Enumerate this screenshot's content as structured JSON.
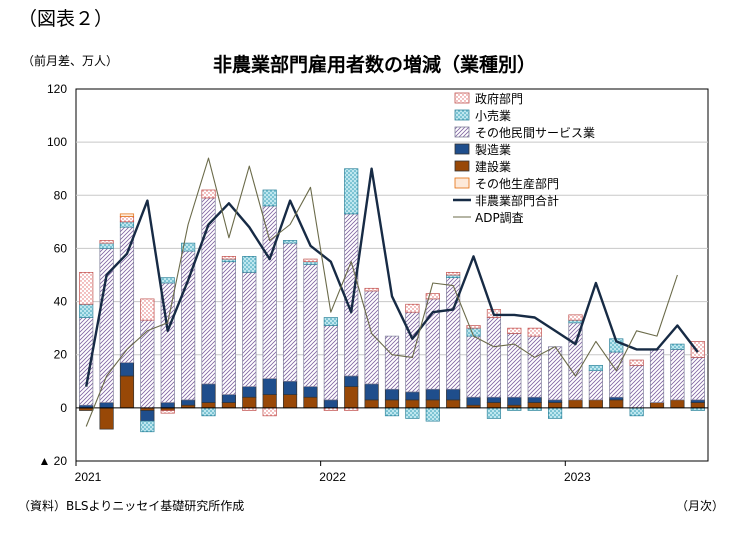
{
  "figure_label": "（図表２）",
  "y_unit": "（前月差、万人）",
  "source": "（資料）BLSよりニッセイ基礎研究所作成",
  "x_unit": "（月次）",
  "colors": {
    "government": "#c0504d",
    "retail": "#4bacc6",
    "other_services": "#8064a2",
    "manufacturing": "#1f4e8c",
    "construction": "#984807",
    "other_goods": "#e46c0a",
    "total": "#172b45",
    "adp": "#6b6b4a"
  },
  "chart_data": {
    "type": "bar",
    "title": "非農業部門雇用者数の増減（業種別）",
    "ylim": [
      -20,
      120
    ],
    "yticks": [
      -20,
      0,
      20,
      40,
      60,
      80,
      100,
      120
    ],
    "ytick_labels": [
      "▲ 20",
      "0",
      "20",
      "40",
      "60",
      "80",
      "100",
      "120"
    ],
    "x_labels": [
      {
        "label": "2021",
        "index": 0
      },
      {
        "label": "2022",
        "index": 12
      },
      {
        "label": "2023",
        "index": 24
      }
    ],
    "categories": [
      "2021-01",
      "2021-02",
      "2021-03",
      "2021-04",
      "2021-05",
      "2021-06",
      "2021-07",
      "2021-08",
      "2021-09",
      "2021-10",
      "2021-11",
      "2021-12",
      "2022-01",
      "2022-02",
      "2022-03",
      "2022-04",
      "2022-05",
      "2022-06",
      "2022-07",
      "2022-08",
      "2022-09",
      "2022-10",
      "2022-11",
      "2022-12",
      "2023-01",
      "2023-02",
      "2023-03",
      "2023-04",
      "2023-05",
      "2023-06",
      "2023-07"
    ],
    "legend_position": "top-right",
    "series": [
      {
        "name": "政府部門",
        "kind": "stack",
        "color_key": "government",
        "pattern": "dots-red",
        "values": [
          12,
          1,
          2,
          8,
          -1,
          0,
          3,
          1,
          -1,
          -3,
          0,
          1,
          -1,
          -1,
          1,
          0,
          3,
          2,
          1,
          1,
          3,
          2,
          3,
          0,
          2,
          0,
          0,
          2,
          0,
          0,
          6
        ]
      },
      {
        "name": "小売業",
        "kind": "stack",
        "color_key": "retail",
        "pattern": "dots-cyan",
        "values": [
          5,
          2,
          2,
          -4,
          2,
          3,
          -3,
          1,
          6,
          6,
          1,
          1,
          3,
          17,
          0,
          -3,
          -4,
          -5,
          1,
          3,
          -4,
          -1,
          -1,
          -4,
          1,
          2,
          5,
          -3,
          0,
          2,
          -1
        ]
      },
      {
        "name": "その他民間サービス業",
        "kind": "stack",
        "color_key": "other_services",
        "pattern": "hatch",
        "values": [
          33,
          58,
          51,
          33,
          45,
          56,
          70,
          50,
          43,
          65,
          52,
          46,
          28,
          61,
          35,
          20,
          30,
          34,
          42,
          23,
          30,
          24,
          23,
          20,
          29,
          11,
          17,
          16,
          20,
          19,
          16
        ]
      },
      {
        "name": "製造業",
        "kind": "stack",
        "color_key": "manufacturing",
        "pattern": "solid",
        "values": [
          1,
          2,
          5,
          -4,
          2,
          2,
          7,
          3,
          4,
          6,
          5,
          4,
          3,
          4,
          6,
          4,
          3,
          4,
          4,
          3,
          2,
          3,
          2,
          1,
          0,
          0,
          1,
          0,
          0,
          0,
          1
        ]
      },
      {
        "name": "建設業",
        "kind": "stack",
        "color_key": "construction",
        "pattern": "solid",
        "values": [
          -1,
          -8,
          12,
          -1,
          -1,
          1,
          2,
          2,
          4,
          5,
          5,
          4,
          0,
          8,
          3,
          3,
          3,
          3,
          3,
          1,
          2,
          1,
          2,
          2,
          3,
          3,
          3,
          0,
          2,
          3,
          2
        ]
      },
      {
        "name": "その他生産部門",
        "kind": "stack",
        "color_key": "other_goods",
        "pattern": "light",
        "values": [
          0,
          0,
          1,
          0,
          0,
          0,
          0,
          0,
          0,
          0,
          0,
          0,
          0,
          0,
          0,
          0,
          0,
          0,
          0,
          0,
          0,
          0,
          0,
          0,
          0,
          0,
          0,
          0,
          0,
          0,
          0
        ]
      },
      {
        "name": "非農業部門合計",
        "kind": "line",
        "color_key": "total",
        "width": 2.4,
        "values": [
          8,
          50,
          58,
          78,
          29,
          48,
          69,
          77,
          68,
          56,
          78,
          61,
          55,
          36,
          90,
          42,
          26,
          36,
          37,
          57,
          35,
          35,
          34,
          29,
          24,
          47,
          25,
          22,
          22,
          31,
          21
        ]
      },
      {
        "name": "ADP調査",
        "kind": "line",
        "color_key": "adp",
        "width": 1.1,
        "values": [
          -7,
          12,
          22,
          29,
          32,
          69,
          94,
          64,
          91,
          63,
          69,
          83,
          36,
          55,
          28,
          20,
          19,
          47,
          46,
          27,
          23,
          24,
          19,
          23,
          12,
          25,
          14,
          29,
          27,
          50,
          null
        ]
      }
    ]
  }
}
